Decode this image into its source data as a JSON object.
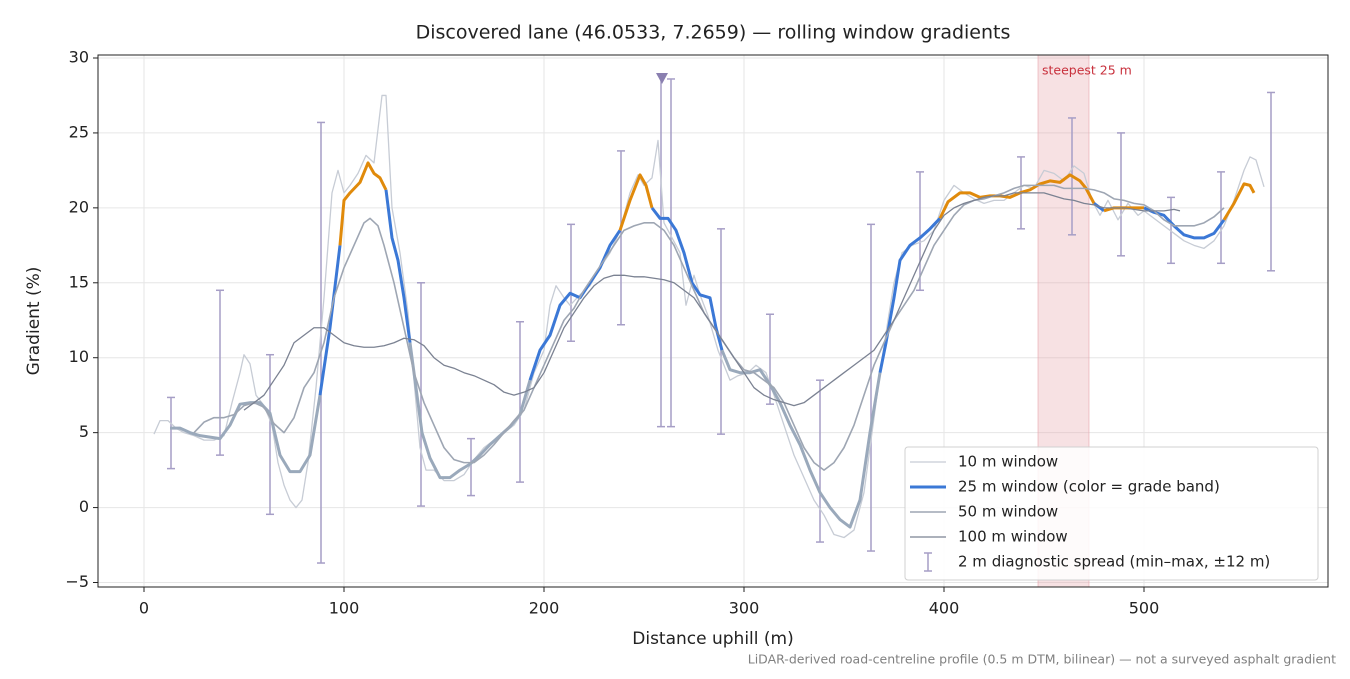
{
  "chart_data": {
    "type": "line",
    "title": "Discovered lane (46.0533, 7.2659) — rolling window gradients",
    "x_label": "Distance uphill (m)",
    "y_label": "Gradient (%)",
    "footnote": "LiDAR-derived road-centreline profile (0.5 m DTM, bilinear) — not a surveyed asphalt gradient",
    "xlim": [
      -23,
      592
    ],
    "ylim": [
      -5.3,
      30.2
    ],
    "xticks": [
      0,
      100,
      200,
      300,
      400,
      500
    ],
    "yticks": [
      {
        "value": -5,
        "label": "−5"
      },
      0,
      5,
      10,
      15,
      20,
      25,
      30
    ],
    "grid": true,
    "legend": "lower right",
    "highlight": {
      "label": "steepest 25 m",
      "x0": 447,
      "x1": 472.5,
      "color": "#e6a3ab"
    },
    "series": [
      {
        "name": "10 m window",
        "color": "#c7ccd5",
        "width": 1.3,
        "x": [
          5,
          8,
          12,
          16,
          20,
          25,
          30,
          35,
          40,
          44,
          48,
          50,
          53,
          56,
          60,
          64,
          67,
          70,
          73,
          76,
          79,
          82,
          86,
          90,
          94,
          97,
          100,
          103,
          107,
          111,
          115,
          119,
          121,
          124,
          128,
          132,
          135,
          138,
          141,
          145,
          150,
          155,
          160,
          165,
          170,
          175,
          180,
          185,
          190,
          195,
          200,
          203,
          206,
          210,
          213,
          218,
          223,
          228,
          233,
          238,
          243,
          247,
          250,
          254,
          257,
          260,
          264,
          268,
          271,
          275,
          278,
          282,
          287,
          290,
          293,
          297,
          302,
          306,
          311,
          315,
          320,
          325,
          330,
          335,
          340,
          345,
          350,
          355,
          360,
          364,
          368,
          372,
          375,
          379,
          384,
          390,
          395,
          400,
          405,
          410,
          415,
          420,
          425,
          430,
          435,
          440,
          445,
          450,
          455,
          460,
          465,
          470,
          474,
          478,
          482,
          487,
          492,
          497,
          500,
          505,
          510,
          515,
          520,
          525,
          530,
          535,
          540,
          545,
          550,
          553,
          556,
          560
        ],
        "values": [
          4.9,
          5.8,
          5.8,
          5.3,
          5.0,
          4.8,
          4.5,
          4.5,
          4.8,
          7,
          9,
          10.2,
          9.6,
          7.5,
          6.8,
          5.5,
          3,
          1.5,
          0.5,
          0,
          0.5,
          3,
          8,
          14,
          21,
          22.5,
          21,
          21.5,
          22.3,
          23.5,
          23,
          27.5,
          27.5,
          20,
          17,
          13,
          8.5,
          4,
          2.5,
          2.5,
          1.8,
          1.8,
          2.2,
          3.2,
          4,
          4.5,
          5,
          5.5,
          6.5,
          9,
          10.5,
          13.5,
          14.8,
          14,
          13.5,
          14.2,
          14.8,
          16,
          17,
          18.5,
          21,
          22.2,
          21.5,
          22,
          24.5,
          19,
          18,
          17,
          13.5,
          15.5,
          14.2,
          12.8,
          10.5,
          9.5,
          8.5,
          8.8,
          9,
          9.5,
          9,
          7.5,
          5.5,
          3.5,
          2,
          0.5,
          -0.5,
          -1.8,
          -2.0,
          -1.5,
          1,
          5,
          9,
          12.5,
          15,
          17,
          17.5,
          17.8,
          18.5,
          20.5,
          21.5,
          21,
          20.6,
          20.3,
          20.5,
          20.5,
          21,
          21.5,
          21.3,
          22.5,
          22.3,
          21.8,
          22.8,
          22.3,
          20.5,
          19.5,
          20.5,
          19.2,
          20.3,
          19.5,
          19.8,
          19.3,
          18.8,
          18.3,
          17.8,
          17.5,
          17.3,
          17.8,
          18.8,
          20.5,
          22.5,
          23.4,
          23.2,
          21.4
        ]
      },
      {
        "name": "25 m window (color = grade band)",
        "color": "#3b78d6",
        "width": 3,
        "band_edges": [
          10,
          20
        ],
        "band_colors": [
          "#9aa9bb",
          "#3b78d6",
          "#e08a0b"
        ],
        "x": [
          13,
          18,
          23,
          28,
          33,
          38,
          43,
          48,
          53,
          58,
          63,
          68,
          73,
          78,
          83,
          88,
          93,
          98,
          100,
          103,
          108,
          112,
          115,
          118,
          121,
          124,
          127,
          130,
          133,
          136,
          139,
          143,
          148,
          153,
          158,
          163,
          168,
          173,
          178,
          183,
          188,
          193,
          198,
          203,
          208,
          213,
          218,
          223,
          228,
          233,
          238,
          243,
          248,
          251,
          254,
          258,
          262,
          266,
          270,
          274,
          278,
          283,
          286,
          289,
          293,
          298,
          303,
          308,
          313,
          318,
          323,
          328,
          333,
          338,
          343,
          348,
          353,
          358,
          363,
          368,
          371,
          375,
          378,
          383,
          388,
          393,
          398,
          402,
          408,
          413,
          418,
          423,
          428,
          433,
          438,
          443,
          448,
          453,
          458,
          463,
          468,
          471,
          475,
          480,
          485,
          490,
          495,
          500,
          505,
          510,
          515,
          520,
          525,
          530,
          535,
          540,
          545,
          550,
          553,
          555
        ],
        "values": [
          5.3,
          5.3,
          5.0,
          4.8,
          4.7,
          4.6,
          5.5,
          6.9,
          7.0,
          7.0,
          6.3,
          3.5,
          2.4,
          2.4,
          3.5,
          7.5,
          12,
          17.5,
          20.5,
          21,
          21.7,
          23,
          22.3,
          22,
          21.2,
          18,
          16.5,
          14,
          11,
          8,
          5,
          3.3,
          2,
          2,
          2.5,
          2.9,
          3.5,
          4.2,
          4.8,
          5.4,
          6.2,
          8.5,
          10.5,
          11.5,
          13.5,
          14.3,
          14,
          15,
          16,
          17.5,
          18.5,
          20.5,
          22.2,
          21.5,
          20,
          19.3,
          19.3,
          18.5,
          17,
          15,
          14.2,
          14,
          12,
          10.5,
          9.2,
          9,
          9,
          9.2,
          8.2,
          7,
          5.5,
          4.2,
          2.5,
          1,
          0,
          -0.8,
          -1.3,
          0.5,
          5,
          9,
          11,
          14,
          16.5,
          17.5,
          18,
          18.6,
          19.3,
          20.4,
          21,
          21,
          20.7,
          20.8,
          20.8,
          20.7,
          21,
          21.2,
          21.6,
          21.8,
          21.7,
          22.2,
          21.8,
          21.3,
          20.3,
          19.8,
          20,
          20,
          20,
          20,
          19.7,
          19.5,
          18.8,
          18.2,
          18,
          18,
          18.3,
          19.2,
          20.3,
          21.6,
          21.5,
          21.0
        ]
      },
      {
        "name": "50 m window",
        "color": "#9ea6b3",
        "width": 1.6,
        "x": [
          25,
          30,
          35,
          40,
          45,
          50,
          55,
          60,
          65,
          70,
          75,
          80,
          85,
          90,
          95,
          100,
          105,
          110,
          113,
          117,
          120,
          125,
          130,
          135,
          140,
          145,
          150,
          155,
          160,
          165,
          170,
          175,
          180,
          185,
          190,
          195,
          200,
          205,
          210,
          215,
          220,
          225,
          230,
          235,
          240,
          245,
          250,
          255,
          260,
          265,
          270,
          275,
          280,
          285,
          290,
          295,
          300,
          305,
          310,
          315,
          320,
          325,
          330,
          335,
          340,
          345,
          350,
          355,
          360,
          365,
          370,
          375,
          380,
          385,
          390,
          395,
          400,
          405,
          410,
          415,
          420,
          425,
          430,
          435,
          440,
          445,
          450,
          455,
          460,
          465,
          470,
          475,
          480,
          485,
          490,
          495,
          500,
          505,
          510,
          515,
          520,
          525,
          530,
          535,
          540
        ],
        "values": [
          5.0,
          5.7,
          6,
          6,
          6.2,
          6.8,
          7,
          6.7,
          5.6,
          5,
          6,
          8,
          9,
          11,
          14,
          16,
          17.5,
          19,
          19.3,
          18.8,
          17.5,
          15,
          12,
          9,
          7,
          5.5,
          4,
          3.2,
          3,
          3,
          3.5,
          4.2,
          5,
          5.8,
          6.5,
          8,
          9.5,
          11,
          12.5,
          13.3,
          14.5,
          15.5,
          16.5,
          17.5,
          18.5,
          18.8,
          19,
          19,
          18.5,
          17.5,
          16,
          14.5,
          13,
          12,
          11,
          10,
          9.2,
          9,
          8.5,
          8,
          7,
          5.5,
          4,
          3,
          2.5,
          3,
          4,
          5.5,
          7.5,
          9.5,
          11,
          12.5,
          13.5,
          14.5,
          16,
          17.5,
          18.5,
          19.5,
          20.2,
          20.5,
          20.6,
          20.8,
          21,
          21.3,
          21.5,
          21.5,
          21.5,
          21.5,
          21.3,
          21.3,
          21.3,
          21.2,
          21,
          20.6,
          20.5,
          20.3,
          20.2,
          19.8,
          19.2,
          18.8,
          18.8,
          18.8,
          19,
          19.4,
          20
        ]
      },
      {
        "name": "100 m window",
        "color": "#7b8292",
        "width": 1.3,
        "x": [
          50,
          55,
          60,
          65,
          70,
          75,
          80,
          85,
          90,
          95,
          100,
          105,
          110,
          115,
          120,
          125,
          130,
          135,
          140,
          145,
          150,
          155,
          160,
          165,
          170,
          175,
          180,
          185,
          190,
          195,
          200,
          205,
          210,
          215,
          220,
          225,
          230,
          235,
          240,
          245,
          250,
          255,
          260,
          265,
          270,
          275,
          280,
          285,
          290,
          295,
          300,
          305,
          310,
          315,
          320,
          325,
          330,
          335,
          340,
          345,
          350,
          355,
          360,
          365,
          370,
          375,
          380,
          385,
          390,
          395,
          400,
          405,
          410,
          415,
          420,
          425,
          430,
          435,
          440,
          445,
          450,
          455,
          460,
          465,
          470,
          475,
          480,
          485,
          490,
          495,
          500,
          505,
          510,
          515,
          518
        ],
        "values": [
          6.5,
          7,
          7.5,
          8.5,
          9.5,
          11,
          11.5,
          12,
          12,
          11.5,
          11,
          10.8,
          10.7,
          10.7,
          10.8,
          11,
          11.3,
          11.2,
          10.8,
          10,
          9.5,
          9.3,
          9,
          8.8,
          8.5,
          8.2,
          7.7,
          7.5,
          7.7,
          8,
          9,
          10.5,
          12,
          13,
          14,
          14.8,
          15.3,
          15.5,
          15.5,
          15.4,
          15.4,
          15.3,
          15.2,
          15,
          14.5,
          14,
          13,
          12,
          11,
          10,
          9,
          8,
          7.5,
          7.2,
          7,
          6.8,
          7,
          7.5,
          8,
          8.5,
          9,
          9.5,
          10,
          10.5,
          11.5,
          12.5,
          14,
          15.5,
          17,
          18.5,
          19.5,
          20,
          20.3,
          20.5,
          20.7,
          20.8,
          20.8,
          21,
          21,
          21,
          21,
          20.8,
          20.6,
          20.5,
          20.3,
          20.2,
          20,
          20,
          20,
          19.9,
          19.8,
          19.8,
          19.8,
          19.9,
          19.8
        ]
      }
    ],
    "errorbars": {
      "name": "2 m diagnostic spread (min–max, ±12 m)",
      "color": "#a69ec6",
      "x": [
        13.5,
        38,
        63,
        88.5,
        138.5,
        163.5,
        188,
        213.5,
        238.5,
        258.5,
        263.5,
        288.5,
        313,
        338,
        363.5,
        388,
        438.5,
        464,
        488.5,
        513.5,
        538.5,
        563.5
      ],
      "low": [
        2.6,
        3.5,
        -0.45,
        -3.7,
        0.1,
        0.8,
        1.7,
        11.1,
        12.2,
        5.4,
        5.4,
        4.9,
        6.9,
        -2.3,
        -2.9,
        14.5,
        18.6,
        18.2,
        16.8,
        16.3,
        16.3,
        15.8
      ],
      "high": [
        7.35,
        14.5,
        10.2,
        25.7,
        15,
        4.6,
        12.4,
        18.9,
        23.8,
        28.9,
        28.6,
        18.6,
        12.9,
        8.5,
        18.9,
        22.4,
        23.4,
        26.0,
        25.0,
        20.7,
        22.4,
        27.7
      ]
    },
    "peak_marker": {
      "x": 259,
      "y": 28.6,
      "color": "#8a7fb0"
    }
  }
}
